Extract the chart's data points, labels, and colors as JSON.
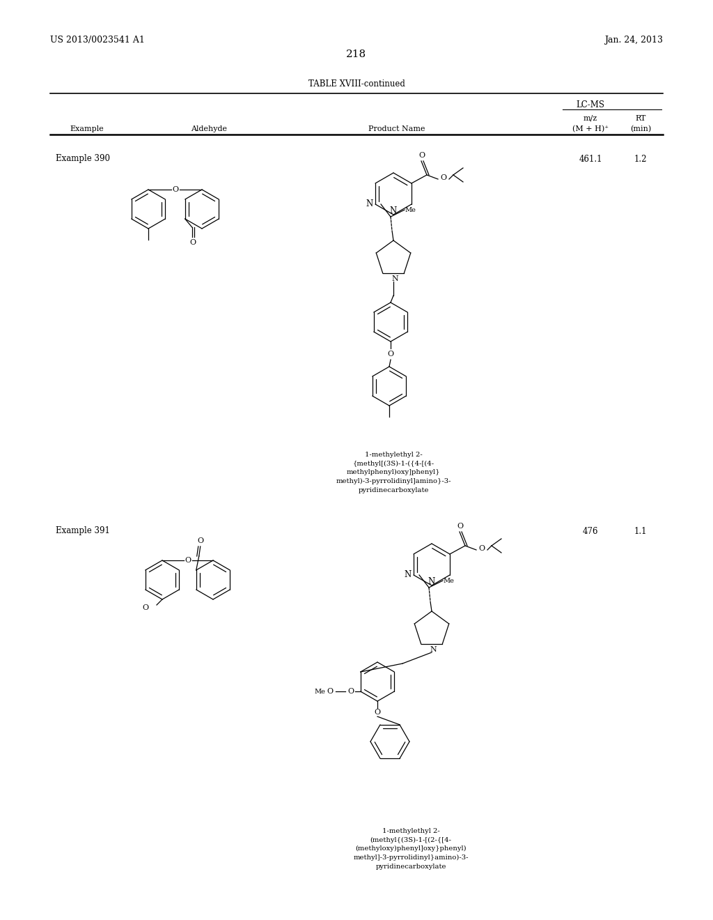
{
  "background_color": "#ffffff",
  "page_number": "218",
  "patent_left": "US 2013/0023541 A1",
  "patent_right": "Jan. 24, 2013",
  "table_title": "TABLE XVIII-continued",
  "lcms_header": "LC-MS",
  "ex390_label": "Example 390",
  "ex391_label": "Example 391",
  "ex390_mz": "461.1",
  "ex390_rt": "1.2",
  "ex391_mz": "476",
  "ex391_rt": "1.1",
  "name390": "1-methylethyl 2-\n{methyl[(3S)-1-({4-[(4-\nmethylphenyl)oxy]phenyl}\nmethyl)-3-pyrrolidinyl]amino}-3-\npyridinecarboxylate",
  "name391": "1-methylethyl 2-\n(methyl{(3S)-1-[(2-{[4-\n(methyloxy)phenyl]oxy}phenyl)\nmethyl]-3-pyrrolidinyl}amino)-3-\npyridinecarboxylate"
}
